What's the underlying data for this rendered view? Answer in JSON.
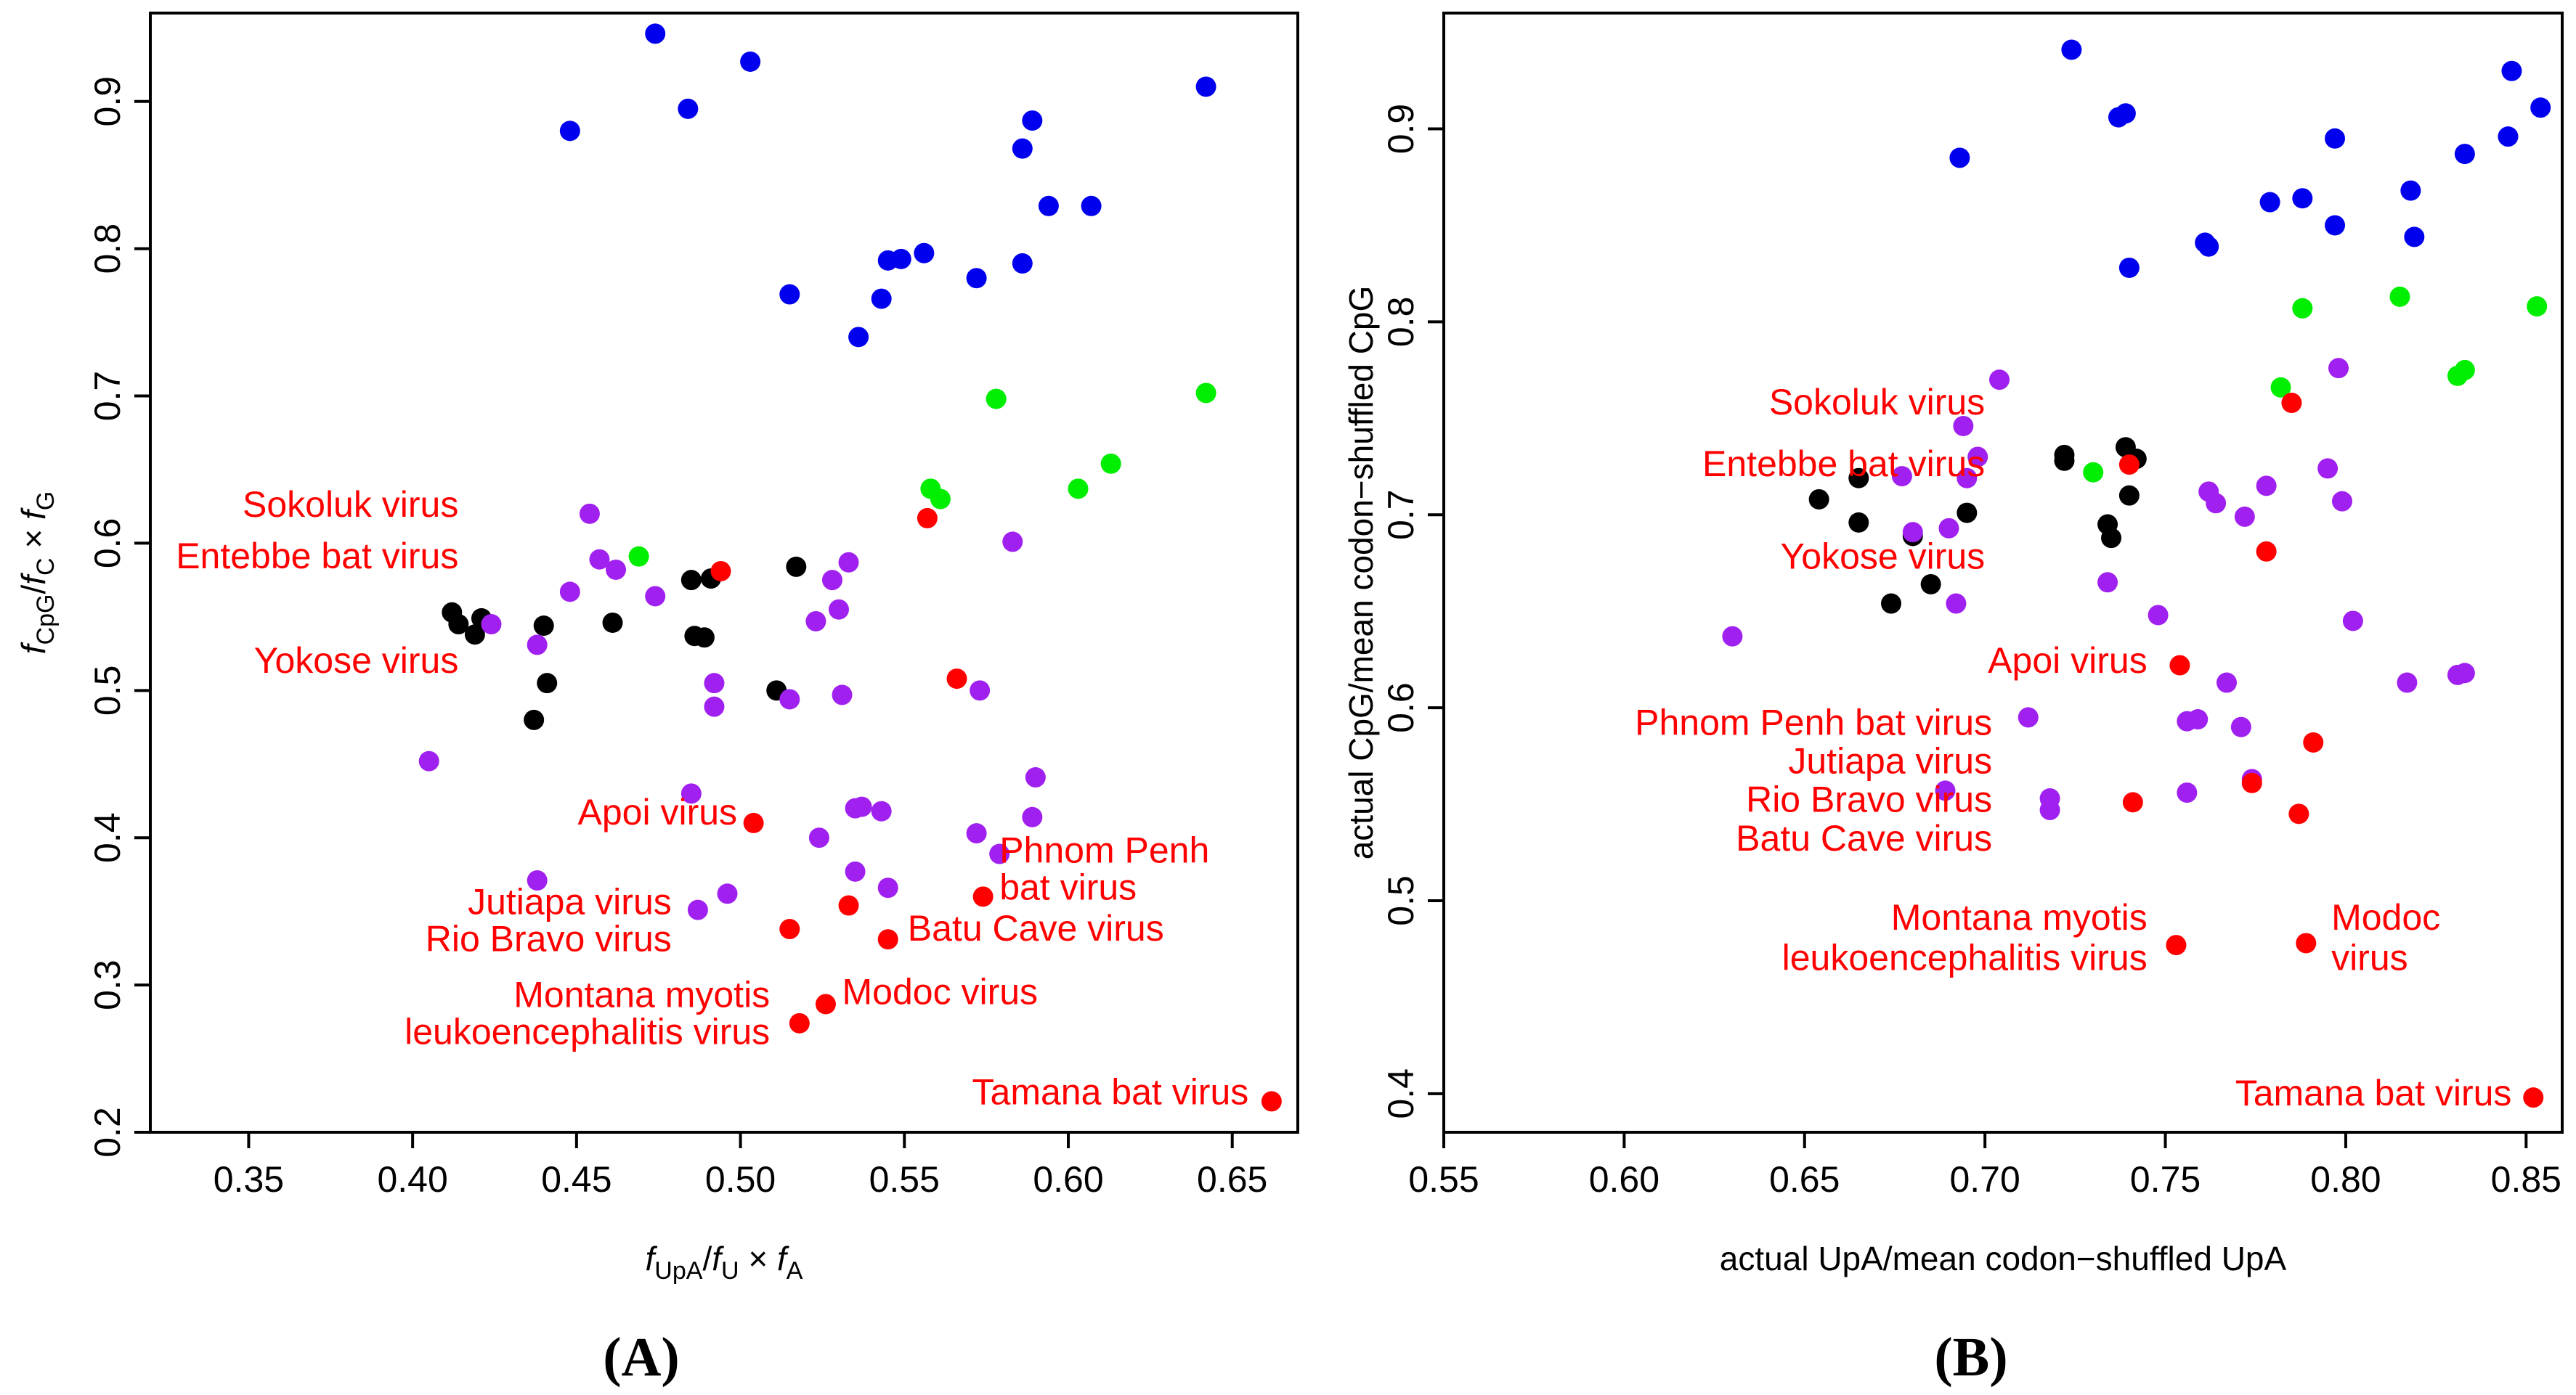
{
  "colors": {
    "blue": "#0000ee",
    "green": "#00ee00",
    "black": "#000000",
    "purple": "#a020f0",
    "red": "#ff0000"
  },
  "chart_data": [
    {
      "type": "scatter",
      "panel": "A",
      "panel_label": "(A)",
      "xlabel": "f_UpA/f_U × f_A",
      "ylabel": "f_CpG/f_C × f_G",
      "xlim": [
        0.32,
        0.67
      ],
      "ylim": [
        0.2,
        0.96
      ],
      "xticks": [
        "0.35",
        "0.40",
        "0.45",
        "0.50",
        "0.55",
        "0.60",
        "0.65"
      ],
      "yticks": [
        "0.2",
        "0.3",
        "0.4",
        "0.5",
        "0.6",
        "0.7",
        "0.8",
        "0.9"
      ],
      "series": [
        {
          "color": "blue",
          "points": [
            [
              0.448,
              0.88
            ],
            [
              0.474,
              0.946
            ],
            [
              0.484,
              0.895
            ],
            [
              0.503,
              0.927
            ],
            [
              0.515,
              0.769
            ],
            [
              0.536,
              0.74
            ],
            [
              0.543,
              0.766
            ],
            [
              0.545,
              0.792
            ],
            [
              0.549,
              0.793
            ],
            [
              0.556,
              0.797
            ],
            [
              0.572,
              0.78
            ],
            [
              0.586,
              0.79
            ],
            [
              0.586,
              0.868
            ],
            [
              0.589,
              0.887
            ],
            [
              0.594,
              0.829
            ],
            [
              0.607,
              0.829
            ],
            [
              0.642,
              0.91
            ]
          ]
        },
        {
          "color": "green",
          "points": [
            [
              0.469,
              0.591
            ],
            [
              0.558,
              0.637
            ],
            [
              0.561,
              0.63
            ],
            [
              0.578,
              0.698
            ],
            [
              0.603,
              0.637
            ],
            [
              0.613,
              0.654
            ],
            [
              0.642,
              0.702
            ]
          ]
        },
        {
          "color": "black",
          "points": [
            [
              0.412,
              0.553
            ],
            [
              0.414,
              0.545
            ],
            [
              0.419,
              0.538
            ],
            [
              0.421,
              0.549
            ],
            [
              0.437,
              0.48
            ],
            [
              0.44,
              0.544
            ],
            [
              0.441,
              0.505
            ],
            [
              0.461,
              0.546
            ],
            [
              0.485,
              0.575
            ],
            [
              0.486,
              0.537
            ],
            [
              0.489,
              0.536
            ],
            [
              0.491,
              0.576
            ],
            [
              0.511,
              0.5
            ],
            [
              0.517,
              0.584
            ]
          ]
        },
        {
          "color": "purple",
          "points": [
            [
              0.405,
              0.452
            ],
            [
              0.424,
              0.545
            ],
            [
              0.438,
              0.531
            ],
            [
              0.438,
              0.371
            ],
            [
              0.448,
              0.567
            ],
            [
              0.454,
              0.62
            ],
            [
              0.457,
              0.589
            ],
            [
              0.462,
              0.582
            ],
            [
              0.474,
              0.564
            ],
            [
              0.485,
              0.43
            ],
            [
              0.487,
              0.351
            ],
            [
              0.492,
              0.505
            ],
            [
              0.492,
              0.489
            ],
            [
              0.496,
              0.362
            ],
            [
              0.515,
              0.494
            ],
            [
              0.523,
              0.547
            ],
            [
              0.524,
              0.4
            ],
            [
              0.528,
              0.575
            ],
            [
              0.53,
              0.555
            ],
            [
              0.531,
              0.497
            ],
            [
              0.533,
              0.587
            ],
            [
              0.535,
              0.42
            ],
            [
              0.535,
              0.377
            ],
            [
              0.537,
              0.421
            ],
            [
              0.543,
              0.418
            ],
            [
              0.545,
              0.366
            ],
            [
              0.573,
              0.5
            ],
            [
              0.579,
              0.389
            ],
            [
              0.583,
              0.601
            ],
            [
              0.572,
              0.403
            ],
            [
              0.589,
              0.414
            ],
            [
              0.59,
              0.441
            ]
          ]
        },
        {
          "color": "red",
          "points": [
            [
              0.494,
              0.581
            ],
            [
              0.504,
              0.41
            ],
            [
              0.515,
              0.338
            ],
            [
              0.518,
              0.274
            ],
            [
              0.526,
              0.287
            ],
            [
              0.533,
              0.354
            ],
            [
              0.545,
              0.331
            ],
            [
              0.557,
              0.617
            ],
            [
              0.566,
              0.508
            ],
            [
              0.574,
              0.36
            ],
            [
              0.662,
              0.221
            ]
          ]
        }
      ],
      "annotations": [
        {
          "text": "Sokoluk virus",
          "x": 0.414,
          "y": 0.618
        },
        {
          "text": "Entebbe bat virus",
          "x": 0.414,
          "y": 0.583
        },
        {
          "text": "Yokose virus",
          "x": 0.414,
          "y": 0.512
        },
        {
          "text": "Apoi virus",
          "x": 0.499,
          "y": 0.409
        },
        {
          "text": "Jutiapa virus",
          "x": 0.479,
          "y": 0.348
        },
        {
          "text": "Rio Bravo virus",
          "x": 0.479,
          "y": 0.323
        },
        {
          "text": "Phnom Penh",
          "x": 0.579,
          "y": 0.383
        },
        {
          "text": "bat virus",
          "x": 0.579,
          "y": 0.358
        },
        {
          "text": "Batu Cave virus",
          "x": 0.551,
          "y": 0.33
        },
        {
          "text": "Montana myotis",
          "x": 0.509,
          "y": 0.285
        },
        {
          "text": "leukoencephalitis virus",
          "x": 0.509,
          "y": 0.26
        },
        {
          "text": "Modoc virus",
          "x": 0.531,
          "y": 0.287
        },
        {
          "text": "Tamana bat virus",
          "x": 0.655,
          "y": 0.219
        }
      ]
    },
    {
      "type": "scatter",
      "panel": "B",
      "panel_label": "(B)",
      "xlabel": "actual UpA/mean codon−shuffled UpA",
      "ylabel": "actual CpG/mean codon−shuffled CpG",
      "xlim": [
        0.55,
        0.86
      ],
      "ylim": [
        0.38,
        0.96
      ],
      "xticks": [
        "0.55",
        "0.60",
        "0.65",
        "0.70",
        "0.75",
        "0.80",
        "0.85"
      ],
      "yticks": [
        "0.4",
        "0.5",
        "0.6",
        "0.7",
        "0.8",
        "0.9"
      ],
      "series": [
        {
          "color": "blue",
          "points": [
            [
              0.693,
              0.885
            ],
            [
              0.724,
              0.941
            ],
            [
              0.737,
              0.906
            ],
            [
              0.739,
              0.908
            ],
            [
              0.74,
              0.828
            ],
            [
              0.761,
              0.841
            ],
            [
              0.762,
              0.839
            ],
            [
              0.779,
              0.862
            ],
            [
              0.788,
              0.864
            ],
            [
              0.797,
              0.85
            ],
            [
              0.797,
              0.895
            ],
            [
              0.818,
              0.868
            ],
            [
              0.819,
              0.844
            ],
            [
              0.833,
              0.887
            ],
            [
              0.845,
              0.896
            ],
            [
              0.846,
              0.93
            ],
            [
              0.854,
              0.911
            ]
          ]
        },
        {
          "color": "green",
          "points": [
            [
              0.73,
              0.722
            ],
            [
              0.782,
              0.766
            ],
            [
              0.788,
              0.807
            ],
            [
              0.815,
              0.813
            ],
            [
              0.831,
              0.772
            ],
            [
              0.833,
              0.775
            ],
            [
              0.853,
              0.808
            ]
          ]
        },
        {
          "color": "black",
          "points": [
            [
              0.654,
              0.708
            ],
            [
              0.665,
              0.719
            ],
            [
              0.665,
              0.696
            ],
            [
              0.674,
              0.654
            ],
            [
              0.68,
              0.689
            ],
            [
              0.685,
              0.664
            ],
            [
              0.695,
              0.701
            ],
            [
              0.722,
              0.728
            ],
            [
              0.722,
              0.731
            ],
            [
              0.734,
              0.695
            ],
            [
              0.735,
              0.688
            ],
            [
              0.739,
              0.735
            ],
            [
              0.74,
              0.71
            ],
            [
              0.742,
              0.729
            ]
          ]
        },
        {
          "color": "purple",
          "points": [
            [
              0.63,
              0.637
            ],
            [
              0.677,
              0.72
            ],
            [
              0.68,
              0.691
            ],
            [
              0.689,
              0.557
            ],
            [
              0.69,
              0.693
            ],
            [
              0.692,
              0.654
            ],
            [
              0.694,
              0.746
            ],
            [
              0.695,
              0.719
            ],
            [
              0.698,
              0.73
            ],
            [
              0.704,
              0.77
            ],
            [
              0.712,
              0.595
            ],
            [
              0.718,
              0.553
            ],
            [
              0.718,
              0.547
            ],
            [
              0.734,
              0.665
            ],
            [
              0.748,
              0.648
            ],
            [
              0.756,
              0.556
            ],
            [
              0.756,
              0.593
            ],
            [
              0.759,
              0.594
            ],
            [
              0.762,
              0.712
            ],
            [
              0.764,
              0.706
            ],
            [
              0.767,
              0.613
            ],
            [
              0.771,
              0.59
            ],
            [
              0.772,
              0.699
            ],
            [
              0.774,
              0.563
            ],
            [
              0.778,
              0.715
            ],
            [
              0.795,
              0.724
            ],
            [
              0.798,
              0.776
            ],
            [
              0.799,
              0.707
            ],
            [
              0.802,
              0.645
            ],
            [
              0.817,
              0.613
            ],
            [
              0.831,
              0.617
            ],
            [
              0.833,
              0.618
            ]
          ]
        },
        {
          "color": "red",
          "points": [
            [
              0.74,
              0.726
            ],
            [
              0.741,
              0.551
            ],
            [
              0.753,
              0.477
            ],
            [
              0.754,
              0.622
            ],
            [
              0.774,
              0.561
            ],
            [
              0.778,
              0.681
            ],
            [
              0.785,
              0.758
            ],
            [
              0.787,
              0.545
            ],
            [
              0.789,
              0.478
            ],
            [
              0.791,
              0.582
            ],
            [
              0.852,
              0.398
            ]
          ]
        }
      ],
      "annotations": [
        {
          "text": "Sokoluk virus",
          "x": 0.7,
          "y": 0.752
        },
        {
          "text": "Entebbe bat virus",
          "x": 0.7,
          "y": 0.72
        },
        {
          "text": "Yokose virus",
          "x": 0.7,
          "y": 0.672
        },
        {
          "text": "Apoi virus",
          "x": 0.745,
          "y": 0.618
        },
        {
          "text": "Phnom Penh bat virus",
          "x": 0.702,
          "y": 0.586
        },
        {
          "text": "Jutiapa virus",
          "x": 0.702,
          "y": 0.566
        },
        {
          "text": "Rio Bravo virus",
          "x": 0.702,
          "y": 0.546
        },
        {
          "text": "Batu Cave virus",
          "x": 0.702,
          "y": 0.526
        },
        {
          "text": "Montana myotis",
          "x": 0.745,
          "y": 0.485
        },
        {
          "text": "leukoencephalitis virus",
          "x": 0.745,
          "y": 0.464
        },
        {
          "text": "Modoc",
          "x": 0.796,
          "y": 0.485
        },
        {
          "text": "virus",
          "x": 0.796,
          "y": 0.464
        },
        {
          "text": "Tamana bat virus",
          "x": 0.846,
          "y": 0.394
        }
      ]
    }
  ]
}
